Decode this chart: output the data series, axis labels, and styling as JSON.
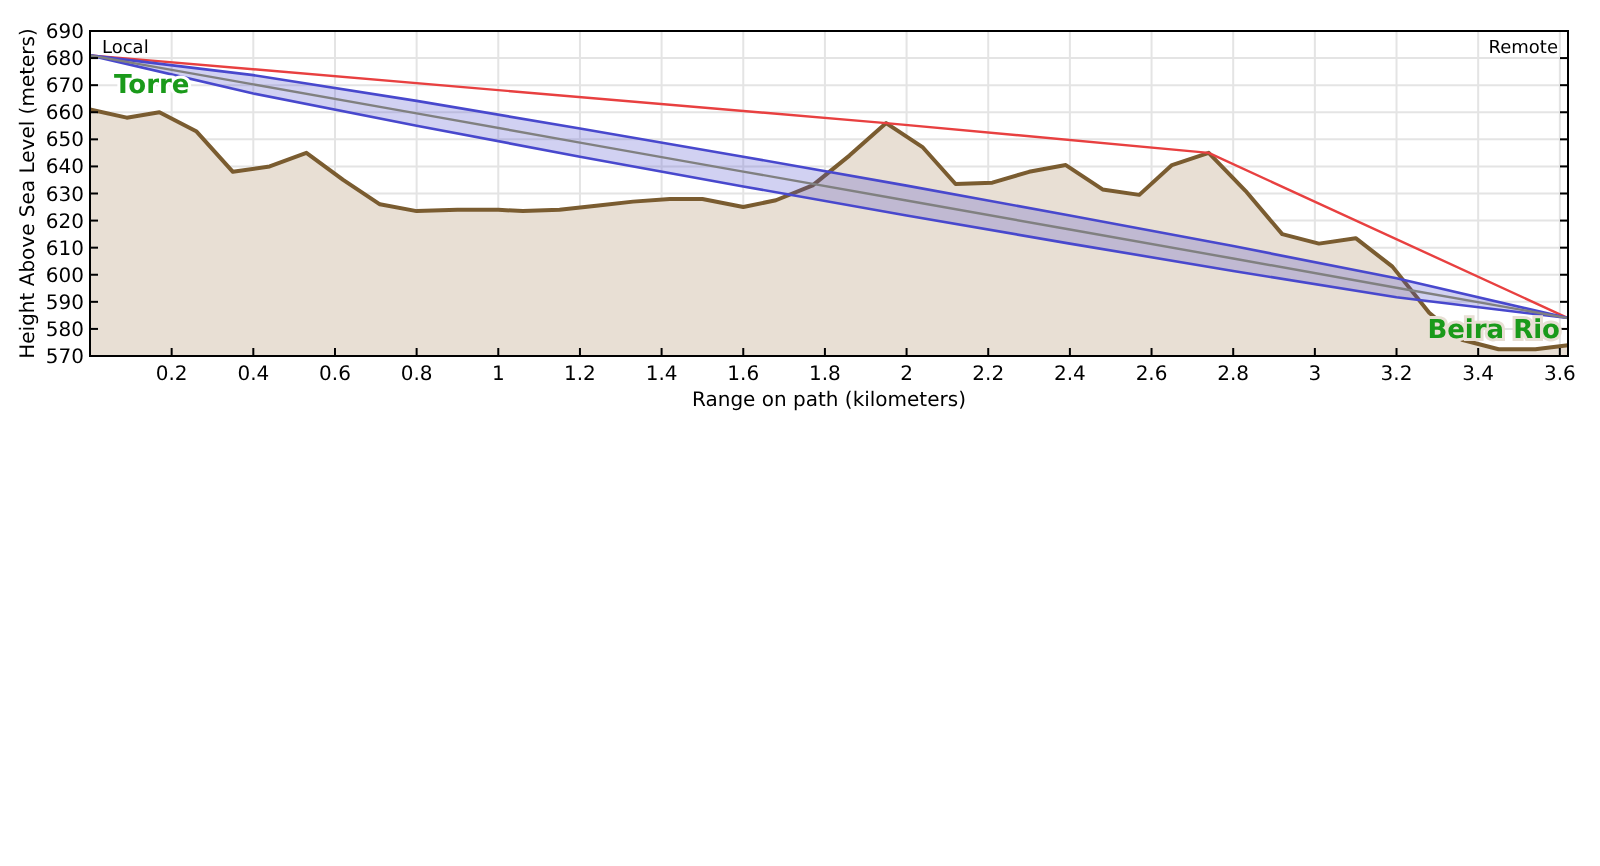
{
  "chart_data": {
    "type": "area",
    "xlabel": "Range on path (kilometers)",
    "ylabel": "Height Above Sea Level (meters)",
    "xlim": [
      0,
      3.62
    ],
    "ylim": [
      570,
      690
    ],
    "xticks": [
      0.2,
      0.4,
      0.6,
      0.8,
      1,
      1.2,
      1.4,
      1.6,
      1.8,
      2,
      2.2,
      2.4,
      2.6,
      2.8,
      3,
      3.2,
      3.4,
      3.6
    ],
    "yticks": [
      570,
      580,
      590,
      600,
      610,
      620,
      630,
      640,
      650,
      660,
      670,
      680,
      690
    ],
    "grid": true,
    "series": [
      {
        "color": "#7a5c30",
        "x": [
          0,
          0.09,
          0.17,
          0.26,
          0.35,
          0.44,
          0.53,
          0.62,
          0.71,
          0.8,
          0.9,
          1.0,
          1.06,
          1.15,
          1.24,
          1.33,
          1.42,
          1.5,
          1.6,
          1.68,
          1.77,
          1.86,
          1.95,
          2.04,
          2.12,
          2.21,
          2.3,
          2.39,
          2.48,
          2.57,
          2.65,
          2.74,
          2.83,
          2.92,
          3.01,
          3.1,
          3.19,
          3.28,
          3.36,
          3.45,
          3.54,
          3.62
        ],
        "values": [
          661,
          658,
          660,
          653,
          638,
          640,
          645,
          635,
          626,
          623.5,
          624,
          624,
          623.5,
          624,
          625.5,
          627,
          628,
          628,
          625,
          627.5,
          633,
          644,
          656,
          647,
          633.5,
          634,
          638,
          640.5,
          631.5,
          629.5,
          640.5,
          645,
          631,
          615,
          611.5,
          613.5,
          603,
          586,
          576,
          572.5,
          572.5,
          574
        ]
      },
      {
        "type": "line",
        "color": "#e84040",
        "x": [
          0,
          1.95,
          2.74,
          3.62
        ],
        "values": [
          681,
          656,
          645,
          584
        ]
      },
      {
        "type": "line",
        "color": "#808080",
        "x": [
          0,
          0.4,
          0.8,
          1.2,
          1.6,
          2.0,
          2.4,
          2.8,
          3.2,
          3.62
        ],
        "values": [
          681,
          670.3,
          659.6,
          648.8,
          638.1,
          627.4,
          616.7,
          606,
          595.2,
          584
        ],
        "lower": [
          681,
          666.9,
          655,
          643.6,
          632.6,
          621.9,
          611.5,
          601.4,
          591.7,
          584
        ],
        "upper": [
          681,
          673.7,
          664.2,
          654,
          643.6,
          632.9,
          621.9,
          610.6,
          598.7,
          584
        ]
      }
    ],
    "annotations": [
      "Local",
      "Remote",
      "Torre",
      "Beira Rio"
    ]
  }
}
